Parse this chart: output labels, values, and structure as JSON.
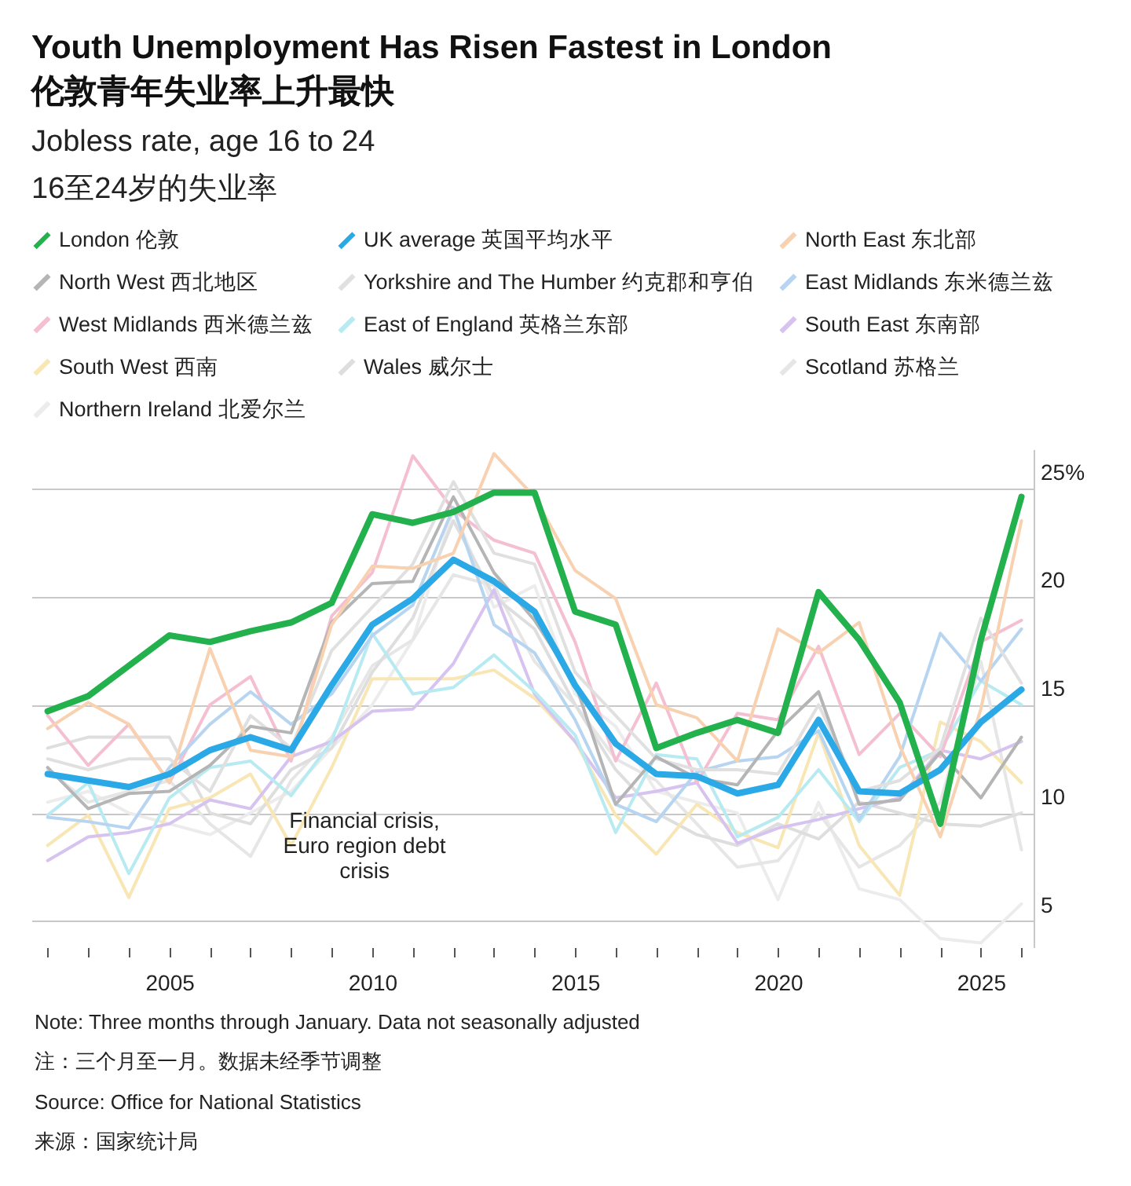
{
  "chart_data": {
    "type": "line",
    "title": "Youth Unemployment Has Risen Fastest in London\n伦敦青年失业率上升最快",
    "subtitle": "Jobless rate, age 16 to 24\n16至24岁的失业率",
    "x": [
      2002,
      2003,
      2004,
      2005,
      2006,
      2007,
      2008,
      2009,
      2010,
      2011,
      2012,
      2013,
      2014,
      2015,
      2016,
      2017,
      2018,
      2019,
      2020,
      2021,
      2022,
      2023,
      2024,
      2025,
      2026
    ],
    "xlim": [
      2001.6,
      2026.3
    ],
    "xticks": [
      {
        "value": 2002,
        "label": null
      },
      {
        "value": 2003,
        "label": null
      },
      {
        "value": 2004,
        "label": null
      },
      2005,
      {
        "value": 2006,
        "label": null
      },
      {
        "value": 2007,
        "label": null
      },
      {
        "value": 2008,
        "label": null
      },
      {
        "value": 2009,
        "label": null
      },
      2010,
      {
        "value": 2011,
        "label": null
      },
      {
        "value": 2012,
        "label": null
      },
      {
        "value": 2013,
        "label": null
      },
      {
        "value": 2014,
        "label": null
      },
      2015,
      {
        "value": 2016,
        "label": null
      },
      {
        "value": 2017,
        "label": null
      },
      {
        "value": 2018,
        "label": null
      },
      {
        "value": 2019,
        "label": null
      },
      2020,
      {
        "value": 2021,
        "label": null
      },
      {
        "value": 2022,
        "label": null
      },
      {
        "value": 2023,
        "label": null
      },
      {
        "value": 2024,
        "label": null
      },
      2025,
      {
        "value": 2026,
        "label": null
      }
    ],
    "ylim": [
      3.8,
      26.8
    ],
    "yticks": [
      5,
      10,
      15,
      20,
      {
        "value": 25,
        "label": "25%"
      }
    ],
    "grid": "y",
    "legend": "top",
    "marker": "none",
    "line_style": "solid",
    "series": [
      {
        "name": "London 伦敦",
        "color": "#22b14c",
        "values": [
          14.7,
          15.4,
          16.8,
          18.2,
          17.9,
          18.4,
          18.8,
          19.7,
          23.8,
          23.4,
          23.9,
          24.8,
          24.8,
          19.3,
          18.7,
          13.0,
          13.7,
          14.3,
          13.7,
          20.2,
          18.0,
          15.1,
          9.5,
          18.0,
          24.6
        ]
      },
      {
        "name": "UK average 英国平均水平",
        "color": "#2ba9e6",
        "values": [
          11.8,
          11.5,
          11.2,
          11.8,
          12.9,
          13.5,
          12.9,
          15.9,
          18.7,
          19.9,
          21.7,
          20.7,
          19.3,
          15.9,
          13.2,
          11.8,
          11.7,
          10.9,
          11.3,
          14.3,
          11.0,
          10.9,
          12.0,
          14.2,
          15.7
        ]
      },
      {
        "name": "North East 东北部",
        "color": "#f8d1b0",
        "values": [
          13.9,
          15.1,
          14.1,
          11.4,
          17.6,
          12.9,
          12.6,
          18.7,
          21.4,
          21.3,
          22.0,
          26.6,
          24.6,
          21.2,
          19.9,
          15.0,
          14.4,
          12.4,
          18.5,
          17.4,
          18.8,
          13.1,
          8.9,
          14.8,
          23.5
        ]
      },
      {
        "name": "North West 西北地区",
        "color": "#b5b5b5",
        "values": [
          12.1,
          10.2,
          10.9,
          11.0,
          12.2,
          14.0,
          13.7,
          18.8,
          20.6,
          20.7,
          24.6,
          21.1,
          18.9,
          16.0,
          10.4,
          12.6,
          11.6,
          11.3,
          13.8,
          15.6,
          10.4,
          10.6,
          12.8,
          10.7,
          13.5
        ]
      },
      {
        "name": "Yorkshire and The Humber 约克郡和亨伯",
        "color": "#e0e0e0",
        "values": [
          12.5,
          12.0,
          12.5,
          12.5,
          11.0,
          14.5,
          13.0,
          17.5,
          19.5,
          21.5,
          25.3,
          22.0,
          21.5,
          16.5,
          14.5,
          12.5,
          12.0,
          12.0,
          11.8,
          15.0,
          11.0,
          11.5,
          13.0,
          19.0,
          16.0
        ]
      },
      {
        "name": "East Midlands 东米德兰兹",
        "color": "#b7d5f0",
        "values": [
          9.8,
          9.6,
          9.3,
          12.1,
          14.1,
          15.6,
          14.1,
          15.5,
          18.2,
          19.6,
          24.1,
          18.7,
          17.4,
          14.3,
          10.4,
          9.6,
          11.9,
          12.4,
          12.6,
          13.8,
          9.7,
          12.6,
          18.3,
          16.1,
          18.5
        ]
      },
      {
        "name": "West Midlands 西米德兰兹",
        "color": "#f5bfd2",
        "values": [
          14.5,
          12.2,
          14.1,
          11.4,
          15.0,
          16.3,
          12.4,
          19.1,
          21.1,
          26.5,
          24.0,
          22.6,
          22.0,
          17.9,
          12.4,
          16.0,
          11.4,
          14.6,
          14.3,
          17.7,
          12.7,
          14.6,
          12.6,
          17.9,
          18.9
        ]
      },
      {
        "name": "East of England 英格兰东部",
        "color": "#b8eaf2",
        "values": [
          9.9,
          11.4,
          7.2,
          10.7,
          12.1,
          12.4,
          10.8,
          13.3,
          18.3,
          15.5,
          15.8,
          17.3,
          15.6,
          13.6,
          9.1,
          12.7,
          12.5,
          8.9,
          9.8,
          12.0,
          9.6,
          12.1,
          12.9,
          16.1,
          15.0
        ]
      },
      {
        "name": "South East 东南部",
        "color": "#d6c3f0",
        "values": [
          7.8,
          8.9,
          9.1,
          9.5,
          10.6,
          10.2,
          12.6,
          13.3,
          14.7,
          14.8,
          16.9,
          20.3,
          15.5,
          13.3,
          10.7,
          11.0,
          11.4,
          8.6,
          9.3,
          9.7,
          10.2,
          10.7,
          12.9,
          12.5,
          13.3
        ]
      },
      {
        "name": "South West 西南",
        "color": "#f8e6b4",
        "values": [
          8.5,
          9.9,
          6.1,
          10.2,
          10.7,
          11.8,
          8.5,
          12.1,
          16.2,
          16.2,
          16.2,
          16.6,
          15.3,
          13.3,
          9.9,
          8.1,
          10.4,
          9.1,
          8.4,
          13.7,
          8.5,
          6.2,
          14.2,
          13.3,
          11.4
        ]
      },
      {
        "name": "Wales 威尔士",
        "color": "#dedede",
        "values": [
          13.0,
          13.5,
          13.5,
          13.5,
          10.0,
          9.5,
          12.0,
          13.0,
          16.5,
          19.0,
          23.5,
          20.0,
          18.5,
          15.0,
          12.0,
          10.0,
          9.0,
          8.5,
          9.5,
          8.8,
          10.5,
          10.0,
          9.5,
          9.4,
          10.0
        ]
      },
      {
        "name": "Scotland 苏格兰",
        "color": "#e6e6e6",
        "values": [
          12.0,
          10.5,
          11.0,
          11.5,
          9.5,
          8.0,
          11.5,
          13.5,
          16.8,
          18.0,
          21.0,
          20.5,
          17.0,
          15.0,
          12.5,
          11.5,
          9.5,
          7.5,
          7.8,
          10.0,
          7.5,
          8.5,
          10.5,
          17.0,
          8.3
        ]
      },
      {
        "name": "Northern Ireland 北爱尔兰",
        "color": "#ececec",
        "values": [
          10.5,
          11.0,
          10.0,
          9.5,
          9.0,
          10.0,
          11.0,
          13.0,
          15.0,
          18.0,
          24.0,
          19.5,
          20.5,
          15.5,
          14.0,
          11.0,
          10.5,
          10.0,
          6.0,
          10.5,
          6.5,
          6.0,
          4.2,
          4.0,
          5.8
        ]
      }
    ],
    "annotations": [
      "Financial crisis,\nEuro region debt\ncrisis",
      "Note: Three months through January. Data not seasonally adjusted",
      "注：三个月至一月。数据未经季节调整",
      "Source: Office for National Statistics",
      "来源：国家统计局"
    ]
  }
}
